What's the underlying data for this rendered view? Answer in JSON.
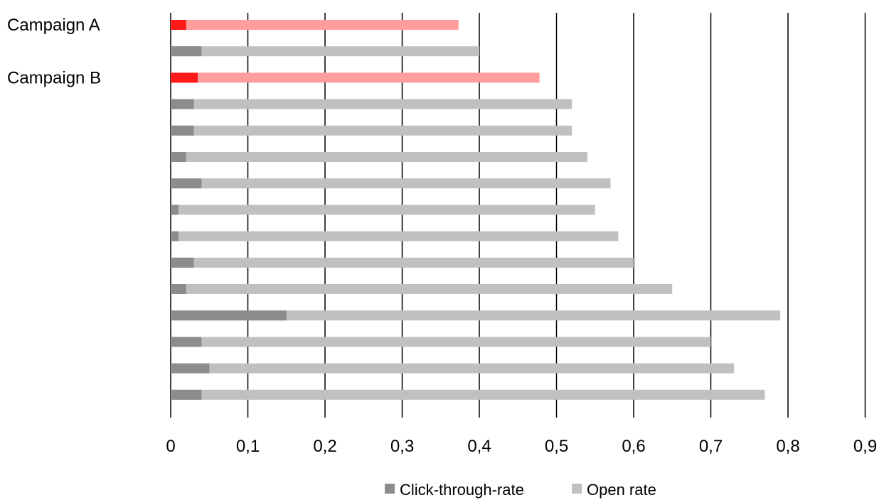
{
  "chart_data": {
    "type": "bar",
    "orientation": "horizontal",
    "stacked": false,
    "overlaid": true,
    "categories": [
      "Campaign A",
      "",
      "Campaign B",
      "",
      "",
      "",
      "",
      "",
      "",
      "",
      "",
      "",
      "",
      "",
      ""
    ],
    "series": [
      {
        "name": "Click-through-rate",
        "values": [
          0.02,
          0.04,
          0.035,
          0.03,
          0.03,
          0.02,
          0.04,
          0.01,
          0.01,
          0.03,
          0.02,
          0.15,
          0.04,
          0.05,
          0.04
        ]
      },
      {
        "name": "Open rate",
        "values": [
          0.373,
          0.4,
          0.478,
          0.52,
          0.52,
          0.54,
          0.57,
          0.55,
          0.58,
          0.6,
          0.65,
          0.79,
          0.7,
          0.73,
          0.77
        ]
      }
    ],
    "highlighted_categories": [
      "Campaign A",
      "Campaign B"
    ],
    "x_ticks": [
      "0",
      "0,1",
      "0,2",
      "0,3",
      "0,4",
      "0,5",
      "0,6",
      "0,7",
      "0,8",
      "0,9"
    ],
    "xlim": [
      0,
      0.9
    ],
    "grid": "vertical",
    "legend_position": "bottom",
    "title": "",
    "xlabel": "",
    "ylabel": "",
    "colors": {
      "click_through": "#8c8c8c",
      "open_rate": "#c0c0c0",
      "highlight_click_through": "#ff1a1a",
      "highlight_open_rate": "#ff9c9c",
      "gridline": "#000000"
    }
  }
}
